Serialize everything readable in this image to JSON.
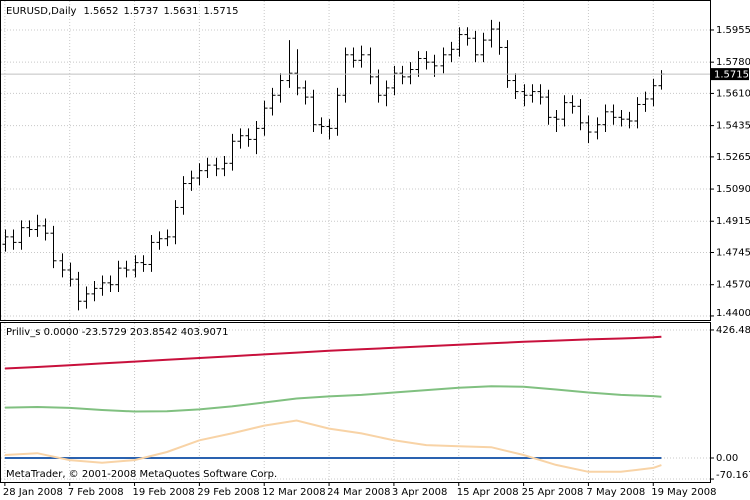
{
  "chart_data": [
    {
      "type": "ohlc",
      "title": "EURUSD,Daily",
      "color": "#000000",
      "price_line_color": "#c0c0c0",
      "grid": true,
      "open": [
        1.479,
        1.483,
        1.48,
        1.488,
        1.487,
        1.489,
        1.485,
        1.47,
        1.465,
        1.46,
        1.448,
        1.452,
        1.455,
        1.458,
        1.457,
        1.466,
        1.465,
        1.469,
        1.468,
        1.48,
        1.482,
        1.483,
        1.499,
        1.512,
        1.515,
        1.519,
        1.522,
        1.52,
        1.523,
        1.535,
        1.538,
        1.536,
        1.542,
        1.553,
        1.56,
        1.568,
        1.572,
        1.564,
        1.559,
        1.544,
        1.543,
        1.542,
        1.56,
        1.582,
        1.579,
        1.582,
        1.57,
        1.56,
        1.564,
        1.572,
        1.57,
        1.574,
        1.58,
        1.578,
        1.576,
        1.582,
        1.585,
        1.593,
        1.591,
        1.582,
        1.59,
        1.596,
        1.586,
        1.568,
        1.562,
        1.56,
        1.562,
        1.559,
        1.548,
        1.547,
        1.556,
        1.554,
        1.545,
        1.54,
        1.544,
        1.551,
        1.548,
        1.547,
        1.546,
        1.555,
        1.558,
        1.5652
      ],
      "high": [
        1.487,
        1.487,
        1.492,
        1.492,
        1.495,
        1.493,
        1.489,
        1.474,
        1.469,
        1.464,
        1.456,
        1.459,
        1.462,
        1.462,
        1.47,
        1.47,
        1.473,
        1.473,
        1.484,
        1.486,
        1.487,
        1.503,
        1.516,
        1.519,
        1.523,
        1.526,
        1.526,
        1.527,
        1.539,
        1.542,
        1.542,
        1.546,
        1.557,
        1.564,
        1.572,
        1.59,
        1.585,
        1.568,
        1.563,
        1.548,
        1.547,
        1.564,
        1.586,
        1.586,
        1.587,
        1.586,
        1.574,
        1.568,
        1.576,
        1.576,
        1.578,
        1.584,
        1.584,
        1.582,
        1.586,
        1.589,
        1.597,
        1.597,
        1.595,
        1.594,
        1.601,
        1.6,
        1.59,
        1.572,
        1.566,
        1.566,
        1.566,
        1.563,
        1.552,
        1.56,
        1.56,
        1.558,
        1.549,
        1.548,
        1.555,
        1.555,
        1.552,
        1.551,
        1.559,
        1.562,
        1.569,
        1.5737
      ],
      "low": [
        1.475,
        1.476,
        1.476,
        1.483,
        1.483,
        1.481,
        1.466,
        1.461,
        1.456,
        1.443,
        1.444,
        1.448,
        1.451,
        1.453,
        1.453,
        1.461,
        1.461,
        1.464,
        1.464,
        1.476,
        1.478,
        1.479,
        1.495,
        1.508,
        1.511,
        1.515,
        1.516,
        1.516,
        1.519,
        1.531,
        1.532,
        1.528,
        1.538,
        1.549,
        1.556,
        1.564,
        1.56,
        1.555,
        1.54,
        1.539,
        1.536,
        1.538,
        1.556,
        1.575,
        1.575,
        1.566,
        1.556,
        1.554,
        1.56,
        1.566,
        1.566,
        1.57,
        1.574,
        1.57,
        1.572,
        1.578,
        1.581,
        1.587,
        1.578,
        1.578,
        1.586,
        1.582,
        1.564,
        1.558,
        1.554,
        1.556,
        1.555,
        1.544,
        1.54,
        1.543,
        1.55,
        1.541,
        1.534,
        1.536,
        1.54,
        1.544,
        1.543,
        1.542,
        1.542,
        1.551,
        1.554,
        1.5631
      ],
      "close": [
        1.483,
        1.48,
        1.488,
        1.487,
        1.489,
        1.485,
        1.47,
        1.465,
        1.46,
        1.448,
        1.452,
        1.455,
        1.458,
        1.457,
        1.466,
        1.465,
        1.469,
        1.468,
        1.48,
        1.482,
        1.483,
        1.499,
        1.512,
        1.515,
        1.519,
        1.522,
        1.52,
        1.523,
        1.535,
        1.538,
        1.536,
        1.542,
        1.553,
        1.56,
        1.568,
        1.572,
        1.564,
        1.559,
        1.544,
        1.543,
        1.542,
        1.56,
        1.582,
        1.579,
        1.582,
        1.57,
        1.56,
        1.564,
        1.572,
        1.57,
        1.574,
        1.58,
        1.578,
        1.576,
        1.582,
        1.585,
        1.593,
        1.591,
        1.582,
        1.59,
        1.596,
        1.586,
        1.568,
        1.562,
        1.56,
        1.562,
        1.559,
        1.548,
        1.547,
        1.556,
        1.554,
        1.545,
        1.54,
        1.544,
        1.551,
        1.548,
        1.547,
        1.546,
        1.555,
        1.558,
        1.5652,
        1.5715
      ],
      "xlim": [
        -0.6,
        87
      ],
      "xticks": [
        {
          "value": 0,
          "label": "28 Jan 2008"
        },
        {
          "value": 8,
          "label": "7 Feb 2008"
        },
        {
          "value": 16,
          "label": "19 Feb 2008"
        },
        {
          "value": 24,
          "label": "29 Feb 2008"
        },
        {
          "value": 32,
          "label": "12 Mar 2008"
        },
        {
          "value": 40,
          "label": "24 Mar 2008"
        },
        {
          "value": 48,
          "label": "3 Apr 2008"
        },
        {
          "value": 56,
          "label": "15 Apr 2008"
        },
        {
          "value": 64,
          "label": "25 Apr 2008"
        },
        {
          "value": 72,
          "label": "7 May 2008"
        },
        {
          "value": 80,
          "label": "19 May 2008"
        }
      ],
      "ylim": [
        1.4378,
        1.6118
      ],
      "yticks": [
        1.5955,
        {
          "value": 1.578,
          "label": "1.5780"
        },
        {
          "value": 1.561,
          "label": "1.5610"
        },
        1.5435,
        1.5265,
        {
          "value": 1.509,
          "label": "1.5090"
        },
        1.4915,
        1.4745,
        {
          "value": 1.457,
          "label": "1.4570"
        },
        {
          "value": 1.44,
          "label": "1.4400"
        }
      ]
    },
    {
      "type": "line",
      "title": "Priliv_s 0.0000 -23.5729 203.8542 403.9071",
      "grid": true,
      "x": [
        0,
        4,
        8,
        12,
        16,
        20,
        24,
        28,
        32,
        36,
        40,
        44,
        48,
        52,
        56,
        60,
        64,
        68,
        72,
        76,
        80,
        81
      ],
      "series": [
        {
          "color": "#2a62b0",
          "values": [
            0,
            0,
            0,
            0,
            0,
            0,
            0,
            0,
            0,
            0,
            0,
            0,
            0,
            0,
            0,
            0,
            0,
            0,
            0,
            0,
            0,
            0
          ]
        },
        {
          "color": "#f8d3a6",
          "values": [
            10,
            16,
            -7,
            -16,
            -7,
            20,
            59,
            82,
            108,
            125,
            98,
            82,
            59,
            43,
            39,
            36,
            10,
            -23,
            -46,
            -46,
            -33,
            -23.5729
          ]
        },
        {
          "color": "#80c080",
          "values": [
            168,
            170,
            167,
            160,
            155,
            156,
            162,
            172,
            185,
            198,
            205,
            210,
            218,
            226,
            234,
            239,
            237,
            228,
            218,
            210,
            206,
            203.8542
          ]
        },
        {
          "color": "#c8103c",
          "values": [
            298,
            303,
            309,
            315,
            321,
            327,
            333,
            339,
            345,
            351,
            357,
            362,
            367,
            372,
            377,
            382,
            387,
            391,
            395,
            398,
            402,
            403.9071
          ]
        }
      ],
      "xlim": [
        -0.6,
        87
      ],
      "ylim": [
        -80,
        453
      ],
      "yticks": [
        426.4821,
        {
          "value": 0,
          "label": "0.00"
        },
        -70.167
      ]
    }
  ],
  "footer": "MetaTrader, © 2001-2008 MetaQuotes Software Corp."
}
